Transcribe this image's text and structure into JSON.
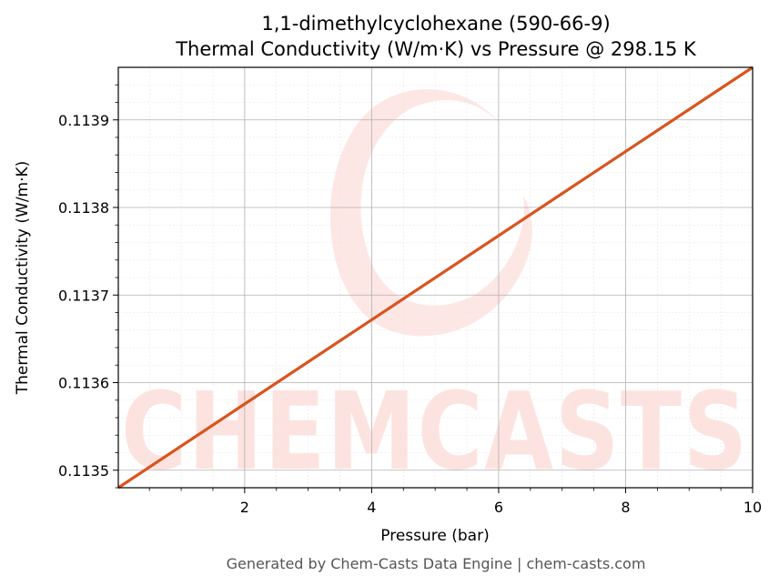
{
  "chart_data": {
    "type": "line",
    "title_line1": "1,1-dimethylcyclohexane (590-66-9)",
    "title_line2": "Thermal Conductivity (W/m·K) vs Pressure @ 298.15 K",
    "xlabel": "Pressure (bar)",
    "ylabel": "Thermal Conductivity (W/m·K)",
    "xlim": [
      0.01,
      10
    ],
    "ylim": [
      0.11348,
      0.11396
    ],
    "x_ticks": [
      2,
      4,
      6,
      8,
      10
    ],
    "x_tick_labels": [
      "2",
      "4",
      "6",
      "8",
      "10"
    ],
    "y_ticks": [
      0.1135,
      0.1136,
      0.1137,
      0.1138,
      0.1139
    ],
    "y_tick_labels": [
      "0.1135",
      "0.1136",
      "0.1137",
      "0.1138",
      "0.1139"
    ],
    "grid": true,
    "series": [
      {
        "color": "#d9541e",
        "x": [
          0.01,
          10
        ],
        "y": [
          0.11348,
          0.11396
        ]
      }
    ]
  },
  "watermark": {
    "text": "CHEMCASTS",
    "color": "#fde3e0"
  },
  "footer": "Generated by Chem-Casts Data Engine | chem-casts.com"
}
